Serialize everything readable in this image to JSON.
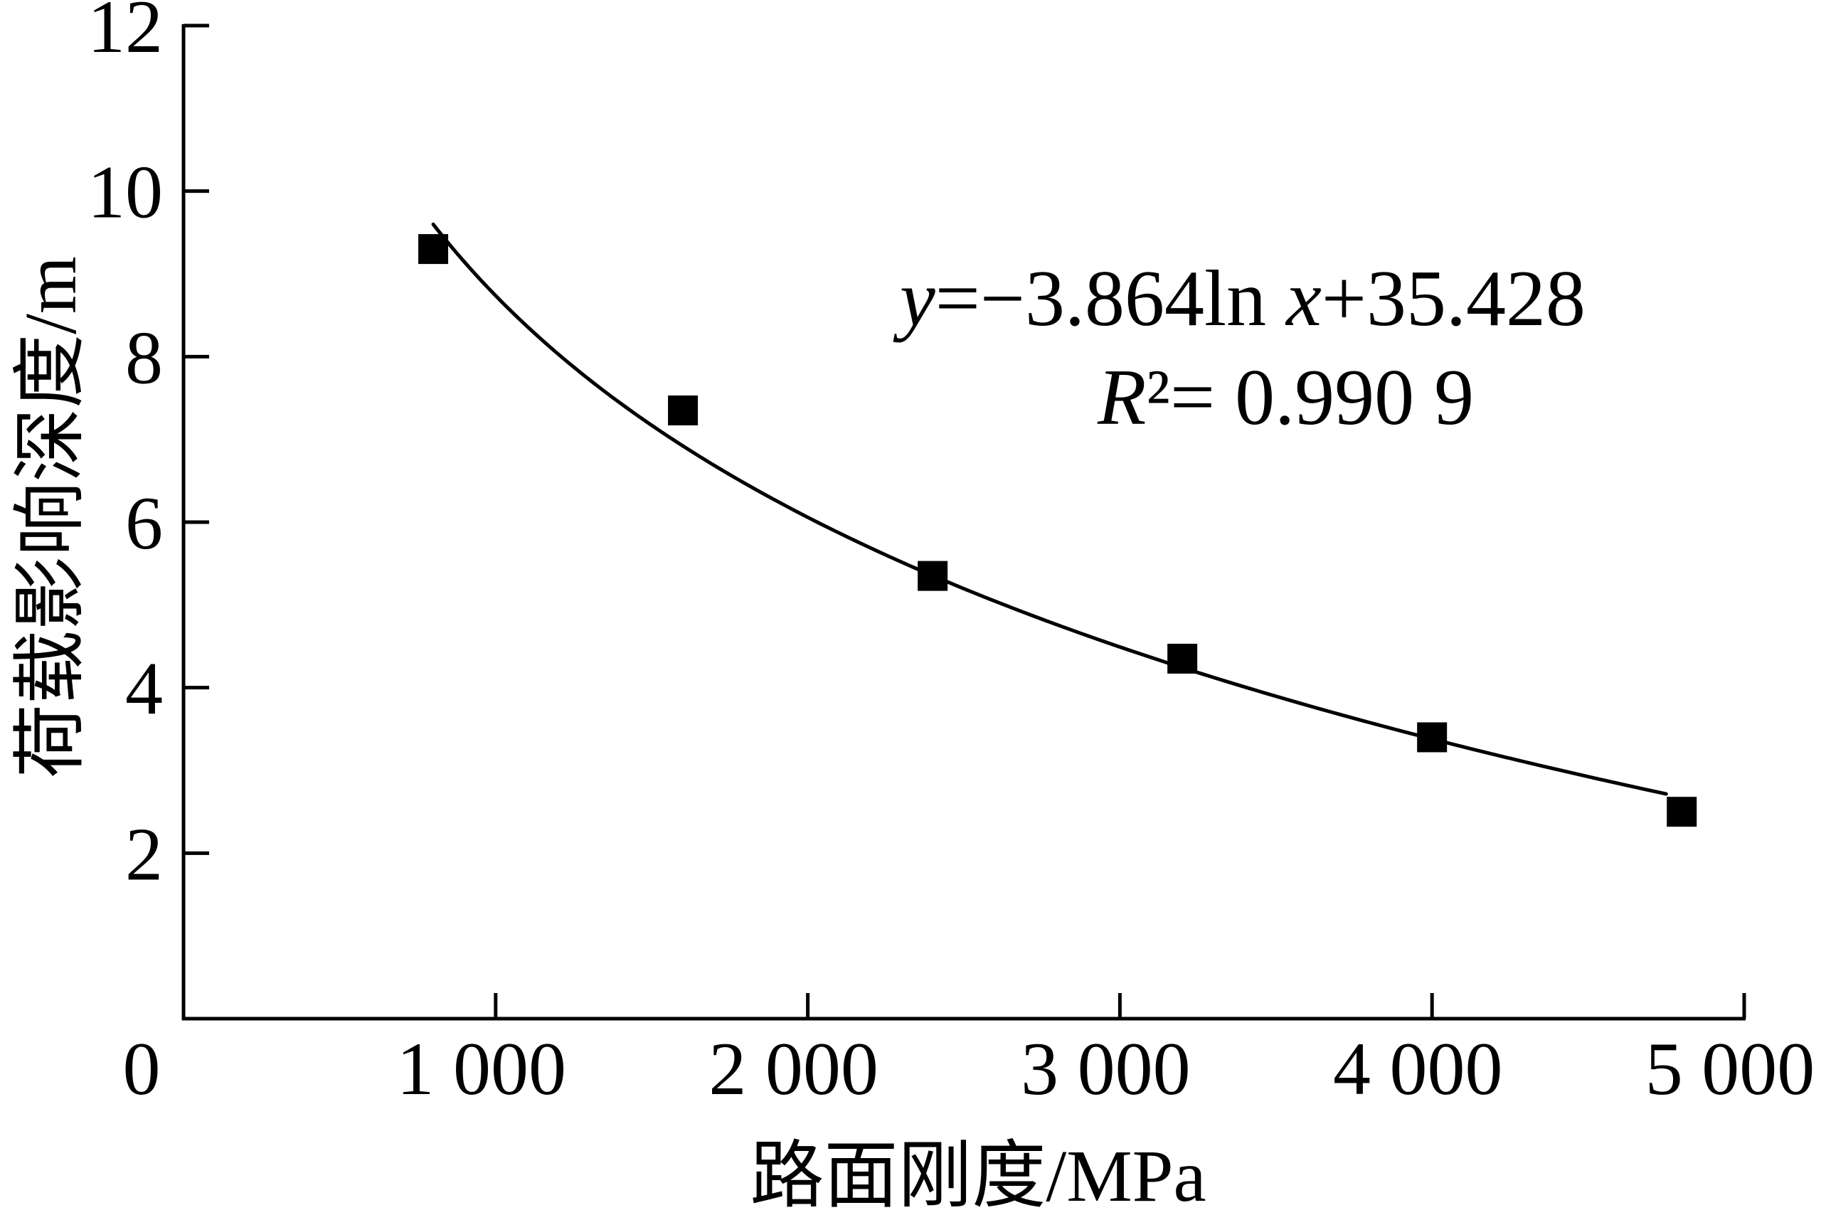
{
  "chart_data": {
    "type": "scatter",
    "xlabel": "路面刚度/MPa",
    "ylabel": "荷载影响深度/m",
    "xlim": [
      0,
      5000
    ],
    "ylim": [
      0,
      12
    ],
    "x_ticks": [
      0,
      1000,
      2000,
      3000,
      4000,
      5000
    ],
    "x_tick_labels": [
      "0",
      "1 000",
      "2 000",
      "3 000",
      "4 000",
      "5 000"
    ],
    "y_ticks": [
      2,
      4,
      6,
      8,
      10,
      12
    ],
    "y_tick_labels": [
      "2",
      "4",
      "6",
      "8",
      "10",
      "12"
    ],
    "grid": false,
    "series": [
      {
        "type": "scatter",
        "color": "#000000",
        "x": [
          800,
          1600,
          2400,
          3200,
          4000,
          4800
        ],
        "y": [
          9.3,
          7.35,
          5.35,
          4.35,
          3.4,
          2.5
        ]
      },
      {
        "type": "line",
        "color": "#000000",
        "fit": {
          "ln_coefficient": -3.864,
          "intercept": 35.428
        },
        "x_range": [
          800,
          4750
        ]
      }
    ],
    "annotations": [
      "y=−3.864ln x+35.428",
      "R²= 0.990 9"
    ]
  }
}
